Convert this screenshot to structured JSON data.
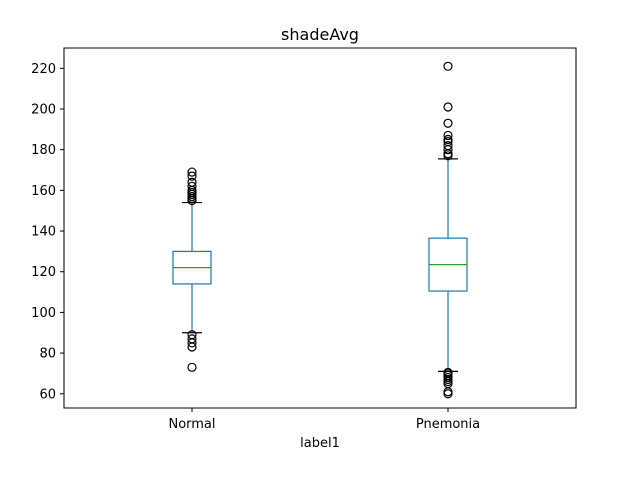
{
  "chart_data": {
    "type": "box",
    "title": "shadeAvg",
    "xlabel": "label1",
    "ylabel": "",
    "ylim": [
      53,
      230
    ],
    "yticks": [
      60,
      80,
      100,
      120,
      140,
      160,
      180,
      200,
      220
    ],
    "grid": false,
    "colors": {
      "box": "#1f77b4",
      "median": "#2ca02c",
      "whisker": "#1f77b4",
      "cap": "#000000",
      "outlier": "#000000"
    },
    "groups": [
      {
        "category": "Normal",
        "whisker_low": 90,
        "q1": 114,
        "median": 122,
        "q3": 130,
        "whisker_high": 154,
        "outliers": [
          73,
          83,
          85,
          87,
          89,
          155,
          156,
          157,
          158,
          159,
          160,
          162,
          164,
          167,
          169
        ]
      },
      {
        "category": "Pnemonia",
        "whisker_low": 71,
        "q1": 110.5,
        "median": 123.5,
        "q3": 136.5,
        "whisker_high": 175.5,
        "outliers": [
          60,
          61,
          65,
          66,
          67,
          68,
          69,
          70,
          70.5,
          177,
          178,
          180,
          182,
          184,
          185,
          187,
          193,
          201,
          221
        ]
      }
    ]
  }
}
